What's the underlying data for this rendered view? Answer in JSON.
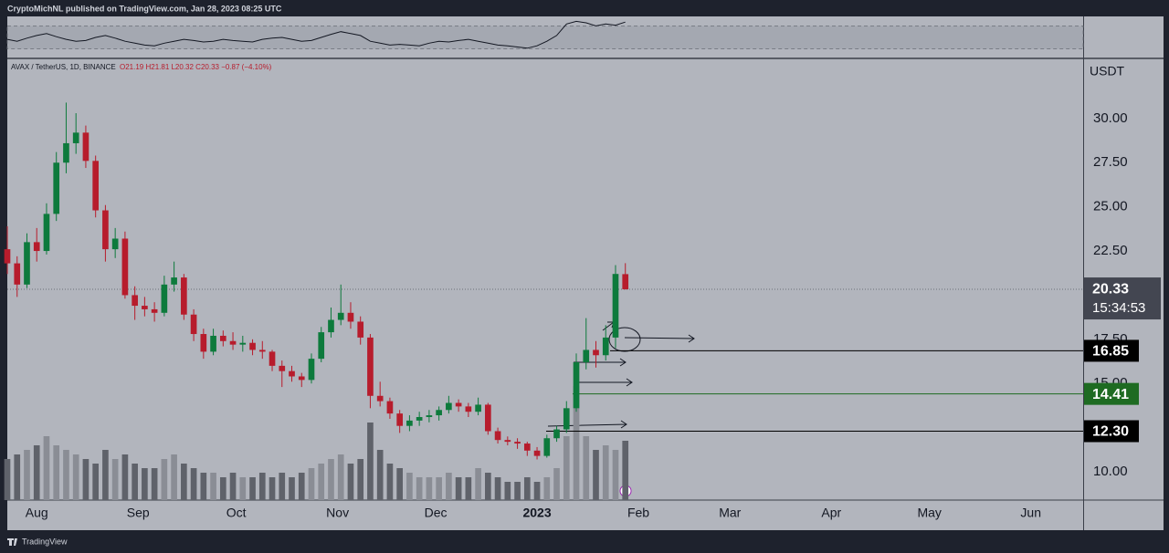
{
  "chart_data": {
    "type": "candlestick",
    "header": "CryptoMichNL published on TradingView.com, Jan 28, 2023 08:25 UTC",
    "symbol": "AVAX / TetherUS, 1D, BINANCE",
    "ohlc_text": "O21.19 H21.81 L20.32 C20.33 −0.87 (−4.10%)",
    "currency": "USDT",
    "footer": "TradingView",
    "up_color": "#0d7a3c",
    "down_color": "#b71c2c",
    "x": [
      -9,
      -6,
      -3,
      0,
      3,
      6,
      9,
      12,
      15,
      18,
      21,
      24,
      27,
      30,
      33,
      36,
      39,
      42,
      45,
      48,
      51,
      54,
      57,
      60,
      63,
      66,
      69,
      72,
      75,
      78,
      81,
      84,
      87,
      90,
      93,
      96,
      99,
      102,
      105,
      108,
      111,
      114,
      117,
      120,
      123,
      126,
      129,
      132,
      135,
      138,
      141,
      144,
      147,
      150,
      153,
      156,
      159,
      162,
      165,
      168,
      171,
      174,
      177,
      180
    ],
    "ohlc": [
      [
        22.6,
        23.9,
        21.2,
        21.8
      ],
      [
        21.8,
        22.2,
        19.9,
        20.6
      ],
      [
        20.6,
        23.5,
        20.4,
        23.0
      ],
      [
        23.0,
        23.8,
        21.9,
        22.5
      ],
      [
        22.5,
        25.2,
        22.3,
        24.6
      ],
      [
        24.6,
        28.1,
        24.2,
        27.5
      ],
      [
        27.5,
        30.9,
        26.9,
        28.6
      ],
      [
        28.6,
        30.3,
        28.0,
        29.2
      ],
      [
        29.2,
        29.6,
        27.2,
        27.6
      ],
      [
        27.6,
        27.9,
        24.4,
        24.8
      ],
      [
        24.8,
        25.1,
        21.9,
        22.6
      ],
      [
        22.6,
        23.8,
        22.1,
        23.2
      ],
      [
        23.2,
        23.6,
        19.8,
        20.0
      ],
      [
        20.0,
        20.5,
        18.6,
        19.4
      ],
      [
        19.4,
        19.9,
        18.8,
        19.2
      ],
      [
        19.2,
        19.6,
        18.5,
        19.0
      ],
      [
        19.0,
        21.1,
        18.8,
        20.6
      ],
      [
        20.6,
        21.9,
        20.2,
        21.0
      ],
      [
        21.0,
        21.2,
        18.6,
        18.9
      ],
      [
        18.9,
        19.2,
        17.4,
        17.8
      ],
      [
        17.8,
        18.1,
        16.4,
        16.8
      ],
      [
        16.8,
        18.1,
        16.6,
        17.7
      ],
      [
        17.7,
        18.0,
        17.1,
        17.4
      ],
      [
        17.4,
        17.9,
        16.9,
        17.2
      ],
      [
        17.2,
        17.7,
        16.8,
        17.3
      ],
      [
        17.3,
        17.5,
        16.6,
        16.9
      ],
      [
        16.9,
        17.4,
        16.4,
        16.8
      ],
      [
        16.8,
        16.9,
        15.7,
        16.0
      ],
      [
        16.0,
        16.3,
        14.8,
        15.7
      ],
      [
        15.7,
        16.0,
        15.1,
        15.4
      ],
      [
        15.4,
        15.6,
        14.8,
        15.2
      ],
      [
        15.2,
        16.7,
        15.0,
        16.4
      ],
      [
        16.4,
        18.2,
        16.2,
        17.9
      ],
      [
        17.9,
        19.3,
        17.6,
        18.6
      ],
      [
        18.6,
        20.6,
        18.3,
        19.0
      ],
      [
        19.0,
        19.6,
        18.1,
        18.5
      ],
      [
        18.5,
        18.8,
        17.2,
        17.6
      ],
      [
        17.6,
        17.8,
        13.6,
        14.3
      ],
      [
        14.3,
        15.1,
        13.7,
        14.0
      ],
      [
        14.0,
        14.2,
        13.0,
        13.3
      ],
      [
        13.3,
        13.5,
        12.2,
        12.6
      ],
      [
        12.6,
        13.2,
        12.3,
        12.9
      ],
      [
        12.9,
        13.4,
        12.6,
        13.1
      ],
      [
        13.1,
        13.5,
        12.8,
        13.2
      ],
      [
        13.2,
        13.7,
        12.9,
        13.5
      ],
      [
        13.5,
        14.3,
        13.3,
        13.9
      ],
      [
        13.9,
        14.1,
        13.4,
        13.7
      ],
      [
        13.7,
        13.9,
        13.1,
        13.4
      ],
      [
        13.4,
        14.2,
        13.2,
        13.8
      ],
      [
        13.8,
        13.9,
        12.1,
        12.3
      ],
      [
        12.3,
        12.5,
        11.6,
        11.8
      ],
      [
        11.8,
        12.0,
        11.5,
        11.7
      ],
      [
        11.7,
        11.9,
        11.3,
        11.6
      ],
      [
        11.6,
        11.7,
        10.9,
        11.2
      ],
      [
        11.2,
        11.4,
        10.7,
        10.9
      ],
      [
        10.9,
        12.1,
        10.8,
        11.9
      ],
      [
        11.9,
        12.6,
        11.7,
        12.4
      ],
      [
        12.4,
        14.0,
        12.2,
        13.6
      ],
      [
        13.6,
        16.7,
        13.4,
        16.2
      ],
      [
        16.2,
        18.7,
        15.8,
        16.9
      ],
      [
        16.9,
        17.4,
        15.9,
        16.6
      ],
      [
        16.6,
        18.3,
        16.3,
        17.6
      ],
      [
        17.6,
        21.7,
        17.0,
        21.2
      ],
      [
        21.19,
        21.81,
        20.32,
        20.33
      ]
    ],
    "volume": [
      45,
      50,
      55,
      60,
      70,
      60,
      55,
      50,
      45,
      40,
      55,
      45,
      50,
      40,
      35,
      35,
      45,
      50,
      40,
      35,
      30,
      30,
      25,
      30,
      25,
      25,
      30,
      25,
      30,
      25,
      30,
      35,
      40,
      45,
      50,
      40,
      45,
      85,
      55,
      40,
      35,
      30,
      25,
      25,
      25,
      30,
      25,
      25,
      35,
      30,
      25,
      20,
      20,
      25,
      20,
      25,
      35,
      70,
      125,
      70,
      55,
      60,
      55,
      65
    ],
    "indicator": {
      "ylim": [
        0,
        100
      ],
      "band": [
        20,
        80
      ],
      "values": [
        45,
        40,
        48,
        55,
        60,
        52,
        45,
        40,
        42,
        50,
        55,
        48,
        40,
        35,
        30,
        28,
        35,
        40,
        45,
        42,
        38,
        40,
        45,
        42,
        40,
        38,
        45,
        48,
        50,
        45,
        40,
        42,
        50,
        58,
        65,
        60,
        55,
        40,
        35,
        30,
        32,
        30,
        28,
        35,
        40,
        38,
        42,
        45,
        40,
        35,
        30,
        28,
        25,
        22,
        28,
        40,
        55,
        85,
        92,
        88,
        80,
        85,
        82,
        90
      ]
    },
    "xlim": [
      -9,
      320
    ],
    "xticks": [
      {
        "value": 0,
        "label": "Aug"
      },
      {
        "value": 31,
        "label": "Sep"
      },
      {
        "value": 61,
        "label": "Oct"
      },
      {
        "value": 92,
        "label": "Nov"
      },
      {
        "value": 122,
        "label": "Dec"
      },
      {
        "value": 153,
        "label": "2023"
      },
      {
        "value": 184,
        "label": "Feb"
      },
      {
        "value": 212,
        "label": "Mar"
      },
      {
        "value": 243,
        "label": "Apr"
      },
      {
        "value": 273,
        "label": "May"
      },
      {
        "value": 304,
        "label": "Jun"
      }
    ],
    "ylim": [
      8.4,
      33.35
    ],
    "yticks": [
      {
        "value": 10,
        "label": "10.00"
      },
      {
        "value": 15,
        "label": "15.00"
      },
      {
        "value": 17.5,
        "label": "17.50"
      },
      {
        "value": 22.5,
        "label": "22.50"
      },
      {
        "value": 25,
        "label": "25.00"
      },
      {
        "value": 27.5,
        "label": "27.50"
      },
      {
        "value": 30,
        "label": "30.00"
      }
    ],
    "levels": [
      {
        "value": 16.85,
        "label": "16.85",
        "color": "#000000"
      },
      {
        "value": 14.41,
        "label": "14.41",
        "color": "#1e6b22"
      },
      {
        "value": 12.3,
        "label": "12.30",
        "color": "#000000"
      }
    ],
    "last_price": {
      "value": 20.33,
      "label": "20.33",
      "countdown": "15:34:53"
    },
    "grid": false
  }
}
